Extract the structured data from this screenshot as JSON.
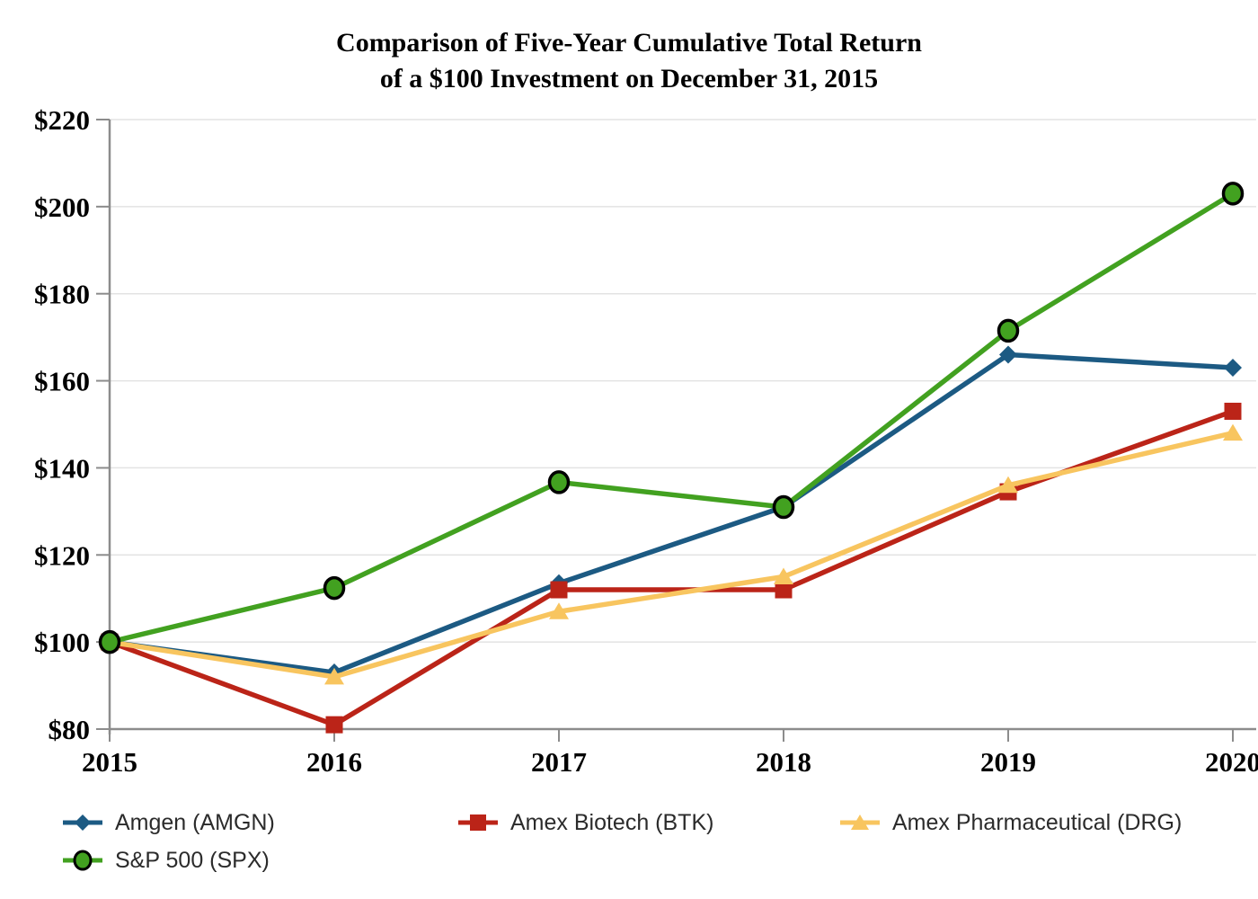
{
  "title": {
    "line1": "Comparison of Five-Year Cumulative Total Return",
    "line2": "of a $100 Investment on December 31, 2015"
  },
  "chart_data": {
    "type": "line",
    "title": "Comparison of Five-Year Cumulative Total Return of a $100 Investment on December 31, 2015",
    "x": [
      2015,
      2016,
      2017,
      2018,
      2019,
      2020
    ],
    "x_tick_labels": [
      "2015",
      "2016",
      "2017",
      "2018",
      "2019",
      "2020"
    ],
    "y_tick_labels": [
      "$80",
      "$100",
      "$120",
      "$140",
      "$160",
      "$180",
      "$200",
      "$220"
    ],
    "ylim": [
      80,
      220
    ],
    "y_step": 20,
    "grid": "horizontal-light",
    "legend_position": "bottom",
    "axis_color": "#8c8c8c",
    "grid_color": "#e3e3e3",
    "series": [
      {
        "name": "Amgen (AMGN)",
        "marker": "diamond",
        "color": "#1c5a83",
        "values": [
          100,
          93,
          113.5,
          131,
          166,
          163
        ]
      },
      {
        "name": "Amex Biotech (BTK)",
        "marker": "square",
        "color": "#bb2418",
        "values": [
          100,
          81,
          112,
          112,
          134.5,
          153
        ]
      },
      {
        "name": "Amex Pharmaceutical (DRG)",
        "marker": "triangle",
        "color": "#f8c55f",
        "values": [
          100,
          92,
          107,
          115,
          136,
          148
        ]
      },
      {
        "name": "S&P 500 (SPX)",
        "marker": "circle",
        "color": "#42a120",
        "marker_outline": "#000000",
        "values": [
          100,
          112.4,
          136.7,
          131,
          171.5,
          203
        ]
      }
    ]
  }
}
